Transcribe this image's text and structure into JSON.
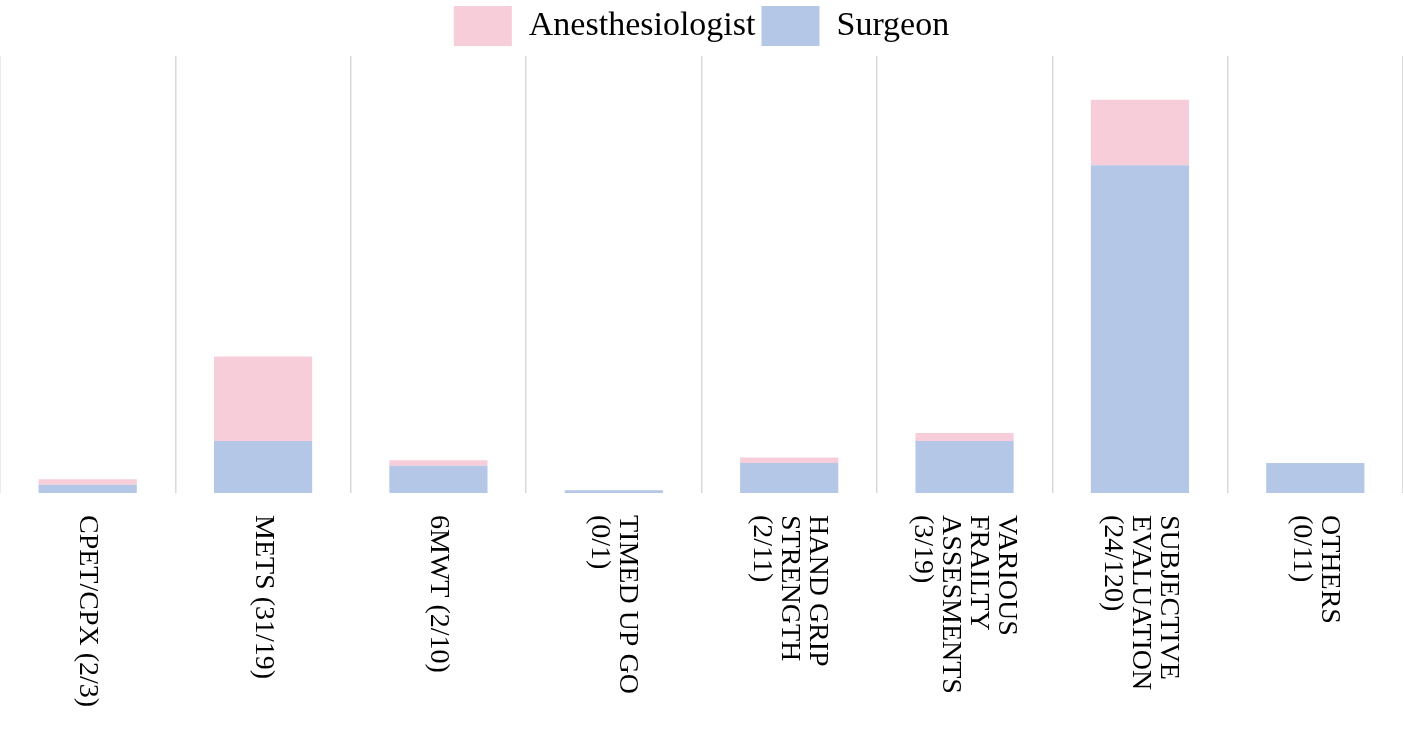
{
  "chart_data": {
    "type": "bar",
    "categories": [
      "CPET/CPX (2/3)",
      "METS (31/19)",
      "6MWT (2/10)",
      "TIMED UP GO\n(0/1)",
      "HAND GRIP\nSTRENGTH\n(2/11)",
      "VARIOUS\nFRAILTY\nASSESMENTS\n(3/19)",
      "SUBJECTIVE\nEVALUATION\n(24/120)",
      "OTHERS\n(0/11)"
    ],
    "series": [
      {
        "name": "Anesthesiologist",
        "color": "#f7cdd9",
        "values": [
          2,
          31,
          2,
          0,
          2,
          3,
          24,
          0
        ]
      },
      {
        "name": "Surgeon",
        "color": "#b4c7e7",
        "values": [
          3,
          19,
          10,
          1,
          11,
          19,
          120,
          11
        ]
      }
    ],
    "ylim": [
      0,
      160
    ],
    "stacked": true,
    "grid": true,
    "legend": "top",
    "tick_labels": "x"
  }
}
